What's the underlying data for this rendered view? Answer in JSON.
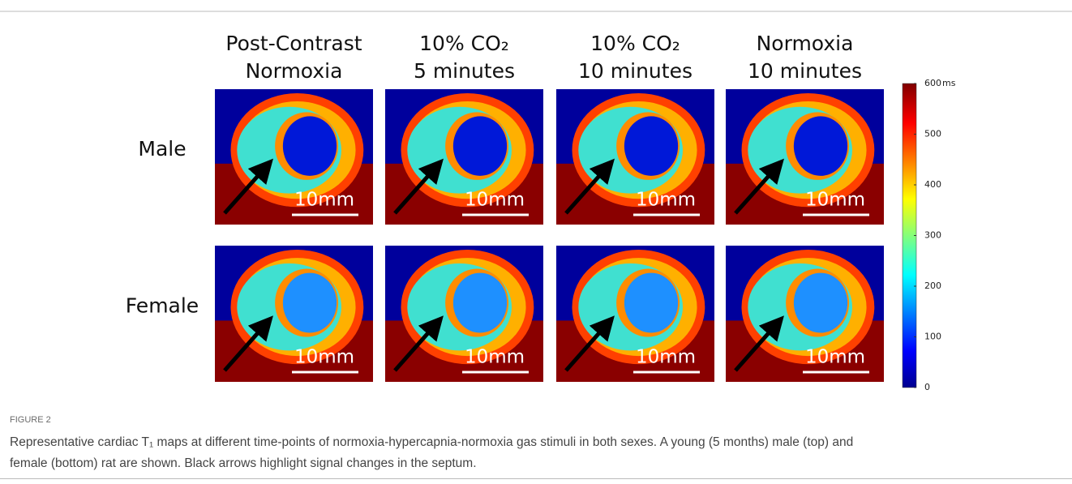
{
  "figure": {
    "columns": [
      [
        "Post-Contrast",
        "Normoxia"
      ],
      [
        "10% CO₂",
        "5 minutes"
      ],
      [
        "10% CO₂",
        "10 minutes"
      ],
      [
        "Normoxia",
        "10 minutes"
      ]
    ],
    "rows": [
      {
        "label": "Male",
        "scale_bars": [
          "10mm",
          "10mm",
          "10mm",
          "10mm"
        ]
      },
      {
        "label": "Female",
        "scale_bars": [
          "10mm",
          "10mm",
          "10mm",
          "10mm"
        ]
      }
    ],
    "colorbar": {
      "lim": [
        0,
        600
      ],
      "ticks": [
        0,
        100,
        200,
        300,
        400,
        500,
        600
      ],
      "unit": "ms"
    }
  },
  "caption": {
    "label": "FIGURE 2",
    "lines": [
      "Representative cardiac T₁ maps at different time-points of normoxia-hypercapnia-normoxia gas stimuli in both sexes. A young (5 months) male (top) and",
      "female (bottom) rat are shown. Black arrows highlight signal changes in the septum."
    ]
  }
}
